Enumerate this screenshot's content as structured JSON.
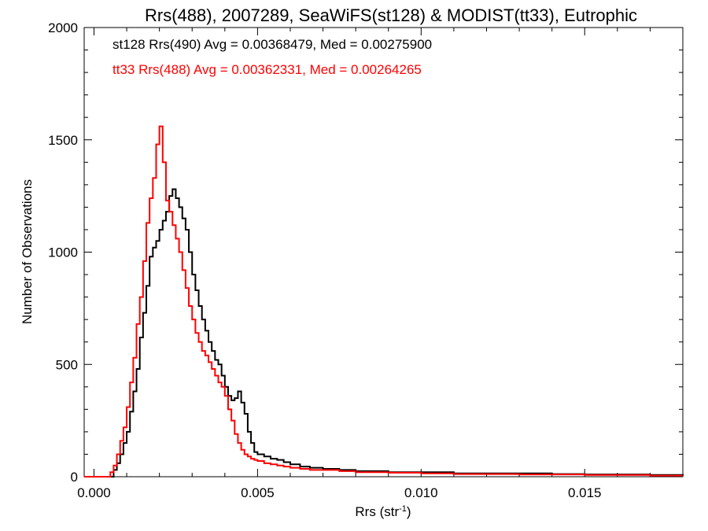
{
  "chart_data": {
    "type": "line",
    "title": "Rrs(488), 2007289, SeaWiFS(st128) & MODIST(tt33), Eutrophic",
    "xlabel": "Rrs (str",
    "xlabel_sup": "-1",
    "xlabel_close": ")",
    "ylabel": "Number of Observations",
    "xlim": [
      -0.0003,
      0.018
    ],
    "ylim": [
      0,
      2000
    ],
    "xticks": [
      0.0,
      0.005,
      0.01,
      0.015
    ],
    "xtick_labels": [
      "0.000",
      "0.005",
      "0.010",
      "0.015"
    ],
    "yticks": [
      0,
      500,
      1000,
      1500,
      2000
    ],
    "ytick_labels": [
      "0",
      "500",
      "1000",
      "1500",
      "2000"
    ],
    "grid": false,
    "annotations": [
      {
        "text": "st128 Rrs(490) Avg = 0.00368479, Med = 0.00275900",
        "color": "#000000"
      },
      {
        "text": "tt33 Rrs(488) Avg = 0.00362331, Med = 0.00264265",
        "color": "#ff0000"
      }
    ],
    "series": [
      {
        "color": "#000000",
        "x": [
          -0.0003,
          0.0005,
          0.0006,
          0.0007,
          0.0008,
          0.0009,
          0.001,
          0.0011,
          0.0012,
          0.0013,
          0.0014,
          0.0015,
          0.0016,
          0.0017,
          0.0018,
          0.0019,
          0.002,
          0.0021,
          0.0022,
          0.0023,
          0.0024,
          0.0025,
          0.0026,
          0.0027,
          0.0028,
          0.0029,
          0.003,
          0.0031,
          0.0032,
          0.0033,
          0.0034,
          0.0035,
          0.0036,
          0.0037,
          0.0038,
          0.0039,
          0.004,
          0.0041,
          0.0042,
          0.0043,
          0.0044,
          0.0045,
          0.0046,
          0.0047,
          0.0048,
          0.0049,
          0.005,
          0.0052,
          0.0054,
          0.0056,
          0.0058,
          0.006,
          0.0063,
          0.0066,
          0.007,
          0.0075,
          0.008,
          0.009,
          0.01,
          0.011,
          0.012,
          0.013,
          0.014,
          0.015,
          0.016,
          0.017,
          0.018
        ],
        "y": [
          0,
          0,
          30,
          60,
          100,
          150,
          200,
          290,
          380,
          480,
          620,
          730,
          850,
          980,
          1020,
          1050,
          1100,
          1140,
          1180,
          1250,
          1280,
          1240,
          1200,
          1150,
          1100,
          1000,
          900,
          830,
          760,
          700,
          650,
          600,
          560,
          520,
          500,
          450,
          400,
          360,
          340,
          350,
          380,
          330,
          280,
          200,
          150,
          110,
          100,
          90,
          80,
          75,
          65,
          55,
          45,
          40,
          35,
          30,
          25,
          20,
          20,
          15,
          15,
          15,
          12,
          10,
          10,
          8,
          5
        ]
      },
      {
        "color": "#ff0000",
        "x": [
          -0.0003,
          0.0004,
          0.0005,
          0.0006,
          0.0007,
          0.0008,
          0.0009,
          0.001,
          0.0011,
          0.0012,
          0.0013,
          0.0014,
          0.0015,
          0.0016,
          0.0017,
          0.0018,
          0.0019,
          0.002,
          0.0021,
          0.0022,
          0.0023,
          0.0024,
          0.0025,
          0.0026,
          0.0027,
          0.0028,
          0.0029,
          0.003,
          0.0031,
          0.0032,
          0.0033,
          0.0034,
          0.0035,
          0.0036,
          0.0037,
          0.0038,
          0.0039,
          0.004,
          0.0041,
          0.0042,
          0.0043,
          0.0044,
          0.0045,
          0.0046,
          0.0047,
          0.0048,
          0.0049,
          0.005,
          0.0052,
          0.0054,
          0.0056,
          0.0058,
          0.006,
          0.0063,
          0.0066,
          0.007,
          0.0075,
          0.008,
          0.009,
          0.01,
          0.011,
          0.012,
          0.013,
          0.014,
          0.015,
          0.016,
          0.017,
          0.018
        ],
        "y": [
          0,
          0,
          20,
          50,
          100,
          160,
          220,
          310,
          420,
          530,
          680,
          800,
          960,
          1130,
          1240,
          1330,
          1480,
          1560,
          1400,
          1230,
          1180,
          1120,
          1060,
          1000,
          920,
          840,
          760,
          700,
          640,
          600,
          560,
          540,
          510,
          480,
          450,
          420,
          400,
          360,
          300,
          250,
          190,
          150,
          120,
          100,
          90,
          80,
          75,
          70,
          60,
          55,
          50,
          45,
          40,
          35,
          30,
          30,
          25,
          20,
          18,
          15,
          12,
          12,
          10,
          10,
          8,
          8,
          5,
          5
        ]
      }
    ]
  }
}
